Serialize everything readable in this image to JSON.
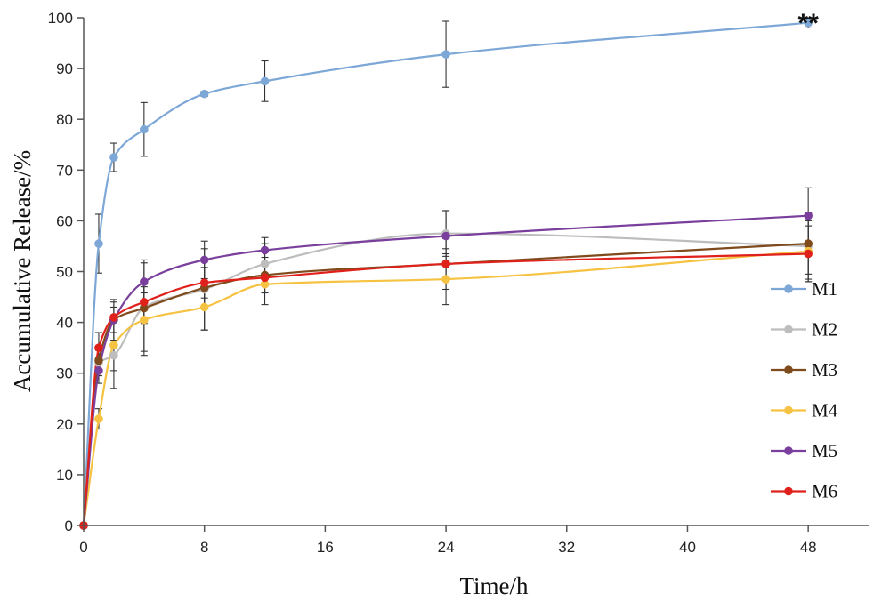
{
  "chart_data": {
    "type": "line",
    "title": "",
    "xlabel": "Time/h",
    "ylabel": "Accumulative Release/%",
    "xlim": [
      0,
      52
    ],
    "ylim": [
      0,
      100
    ],
    "xticks": [
      0,
      8,
      16,
      24,
      32,
      40,
      48
    ],
    "yticks": [
      0,
      10,
      20,
      30,
      40,
      50,
      60,
      70,
      80,
      90,
      100
    ],
    "x": [
      0,
      1,
      2,
      4,
      8,
      12,
      24,
      48
    ],
    "grid": false,
    "legend_position": "right",
    "annotation": {
      "text": "**",
      "x": 48,
      "y": 100
    },
    "series": [
      {
        "name": "M1",
        "color": "#7da7d6",
        "values": [
          0,
          55.5,
          72.5,
          78,
          85,
          87.5,
          92.8,
          99
        ],
        "errors": [
          0,
          5.8,
          2.8,
          5.3,
          0.5,
          4,
          6.5,
          1
        ]
      },
      {
        "name": "M2",
        "color": "#bdbdbd",
        "values": [
          0,
          32,
          33.5,
          43,
          46.5,
          51.5,
          57.5,
          55
        ],
        "errors": [
          0,
          2.5,
          6.5,
          8.7,
          8,
          4,
          4.5,
          6.5
        ]
      },
      {
        "name": "M3",
        "color": "#7f4a1c",
        "values": [
          0,
          32.5,
          40.5,
          42.8,
          46.8,
          49.3,
          51.5,
          55.5
        ],
        "errors": [
          0,
          2,
          2.5,
          3,
          4,
          3.5,
          5,
          6
        ]
      },
      {
        "name": "M4",
        "color": "#f5c242",
        "values": [
          0,
          21,
          35.5,
          40.5,
          43,
          47.5,
          48.5,
          54
        ],
        "errors": [
          0,
          2,
          5,
          7,
          4.5,
          4,
          5,
          6
        ]
      },
      {
        "name": "M5",
        "color": "#7a3f9d",
        "values": [
          0,
          30.5,
          40.5,
          48,
          52.3,
          54.2,
          57,
          61
        ],
        "errors": [
          0,
          2.5,
          4,
          4.3,
          3.7,
          2.5,
          5,
          5.5
        ]
      },
      {
        "name": "M6",
        "color": "#e0201b",
        "values": [
          0,
          35,
          41,
          44,
          47.8,
          48.8,
          51.5,
          53.5
        ],
        "errors": [
          0,
          3,
          3,
          3,
          3,
          3,
          3,
          5.5
        ]
      }
    ]
  }
}
